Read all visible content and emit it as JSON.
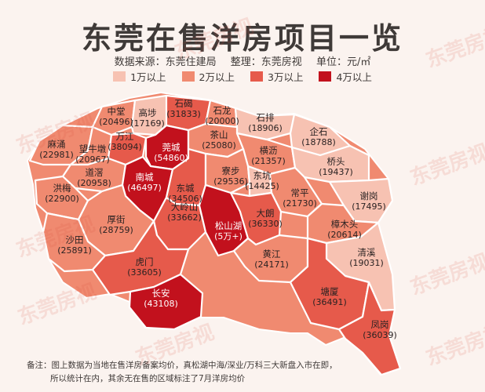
{
  "title": "东莞在售洋房项目一览",
  "subtitle": {
    "source": "数据来源：东莞住建局",
    "compiler": "整理：东莞房视",
    "unit": "单位：元/㎡"
  },
  "legend": [
    {
      "label": "1万以上",
      "color": "#f7c2b2"
    },
    {
      "label": "2万以上",
      "color": "#f08a70"
    },
    {
      "label": "3万以上",
      "color": "#e65a4b"
    },
    {
      "label": "4万以上",
      "color": "#c2111d"
    }
  ],
  "regions": [
    {
      "name": "石碣",
      "value": "(31833)",
      "tier": 3
    },
    {
      "name": "中堂",
      "value": "(20496)",
      "tier": 2
    },
    {
      "name": "高埗",
      "value": "(17169)",
      "tier": 1
    },
    {
      "name": "石龙",
      "value": "(20000)",
      "tier": 2
    },
    {
      "name": "石排",
      "value": "(18906)",
      "tier": 1
    },
    {
      "name": "企石",
      "value": "(18788)",
      "tier": 1
    },
    {
      "name": "麻涌",
      "value": "(22981)",
      "tier": 2
    },
    {
      "name": "望牛墩",
      "value": "(20967)",
      "tier": 2
    },
    {
      "name": "万江",
      "value": "(38094)",
      "tier": 3
    },
    {
      "name": "莞城",
      "value": "(54860)",
      "tier": 4
    },
    {
      "name": "茶山",
      "value": "(25080)",
      "tier": 2
    },
    {
      "name": "横沥",
      "value": "(21357)",
      "tier": 2
    },
    {
      "name": "桥头",
      "value": "(19437)",
      "tier": 1
    },
    {
      "name": "道滘",
      "value": "(20958)",
      "tier": 2
    },
    {
      "name": "南城",
      "value": "(46497)",
      "tier": 4
    },
    {
      "name": "东城",
      "value": "(34506)",
      "tier": 3
    },
    {
      "name": "寮步",
      "value": "(29536)",
      "tier": 2
    },
    {
      "name": "东坑",
      "value": "(14425)",
      "tier": 1
    },
    {
      "name": "洪梅",
      "value": "(22900)",
      "tier": 2
    },
    {
      "name": "常平",
      "value": "(21730)",
      "tier": 2
    },
    {
      "name": "谢岗",
      "value": "(17495)",
      "tier": 1
    },
    {
      "name": "厚街",
      "value": "(28759)",
      "tier": 2
    },
    {
      "name": "大岭山",
      "value": "(33662)",
      "tier": 3
    },
    {
      "name": "松山湖",
      "value": "(5万+)",
      "tier": 4
    },
    {
      "name": "大朗",
      "value": "(36330)",
      "tier": 3
    },
    {
      "name": "樟木头",
      "value": "(20614)",
      "tier": 2
    },
    {
      "name": "沙田",
      "value": "(25891)",
      "tier": 2
    },
    {
      "name": "虎门",
      "value": "(33605)",
      "tier": 3
    },
    {
      "name": "黄江",
      "value": "(24171)",
      "tier": 2
    },
    {
      "name": "清溪",
      "value": "(19031)",
      "tier": 1
    },
    {
      "name": "长安",
      "value": "(43108)",
      "tier": 4
    },
    {
      "name": "塘厦",
      "value": "(36491)",
      "tier": 3
    },
    {
      "name": "凤岗",
      "value": "(36039)",
      "tier": 3
    }
  ],
  "note": {
    "line1": "备注：图上数据为当地在售洋房备案均价，真松湖中海/深业/万科三大新盘入市在即，",
    "line2": "所以统计在内，其余无在售的区域标注了7月洋房均价"
  },
  "watermark": "东莞房视"
}
